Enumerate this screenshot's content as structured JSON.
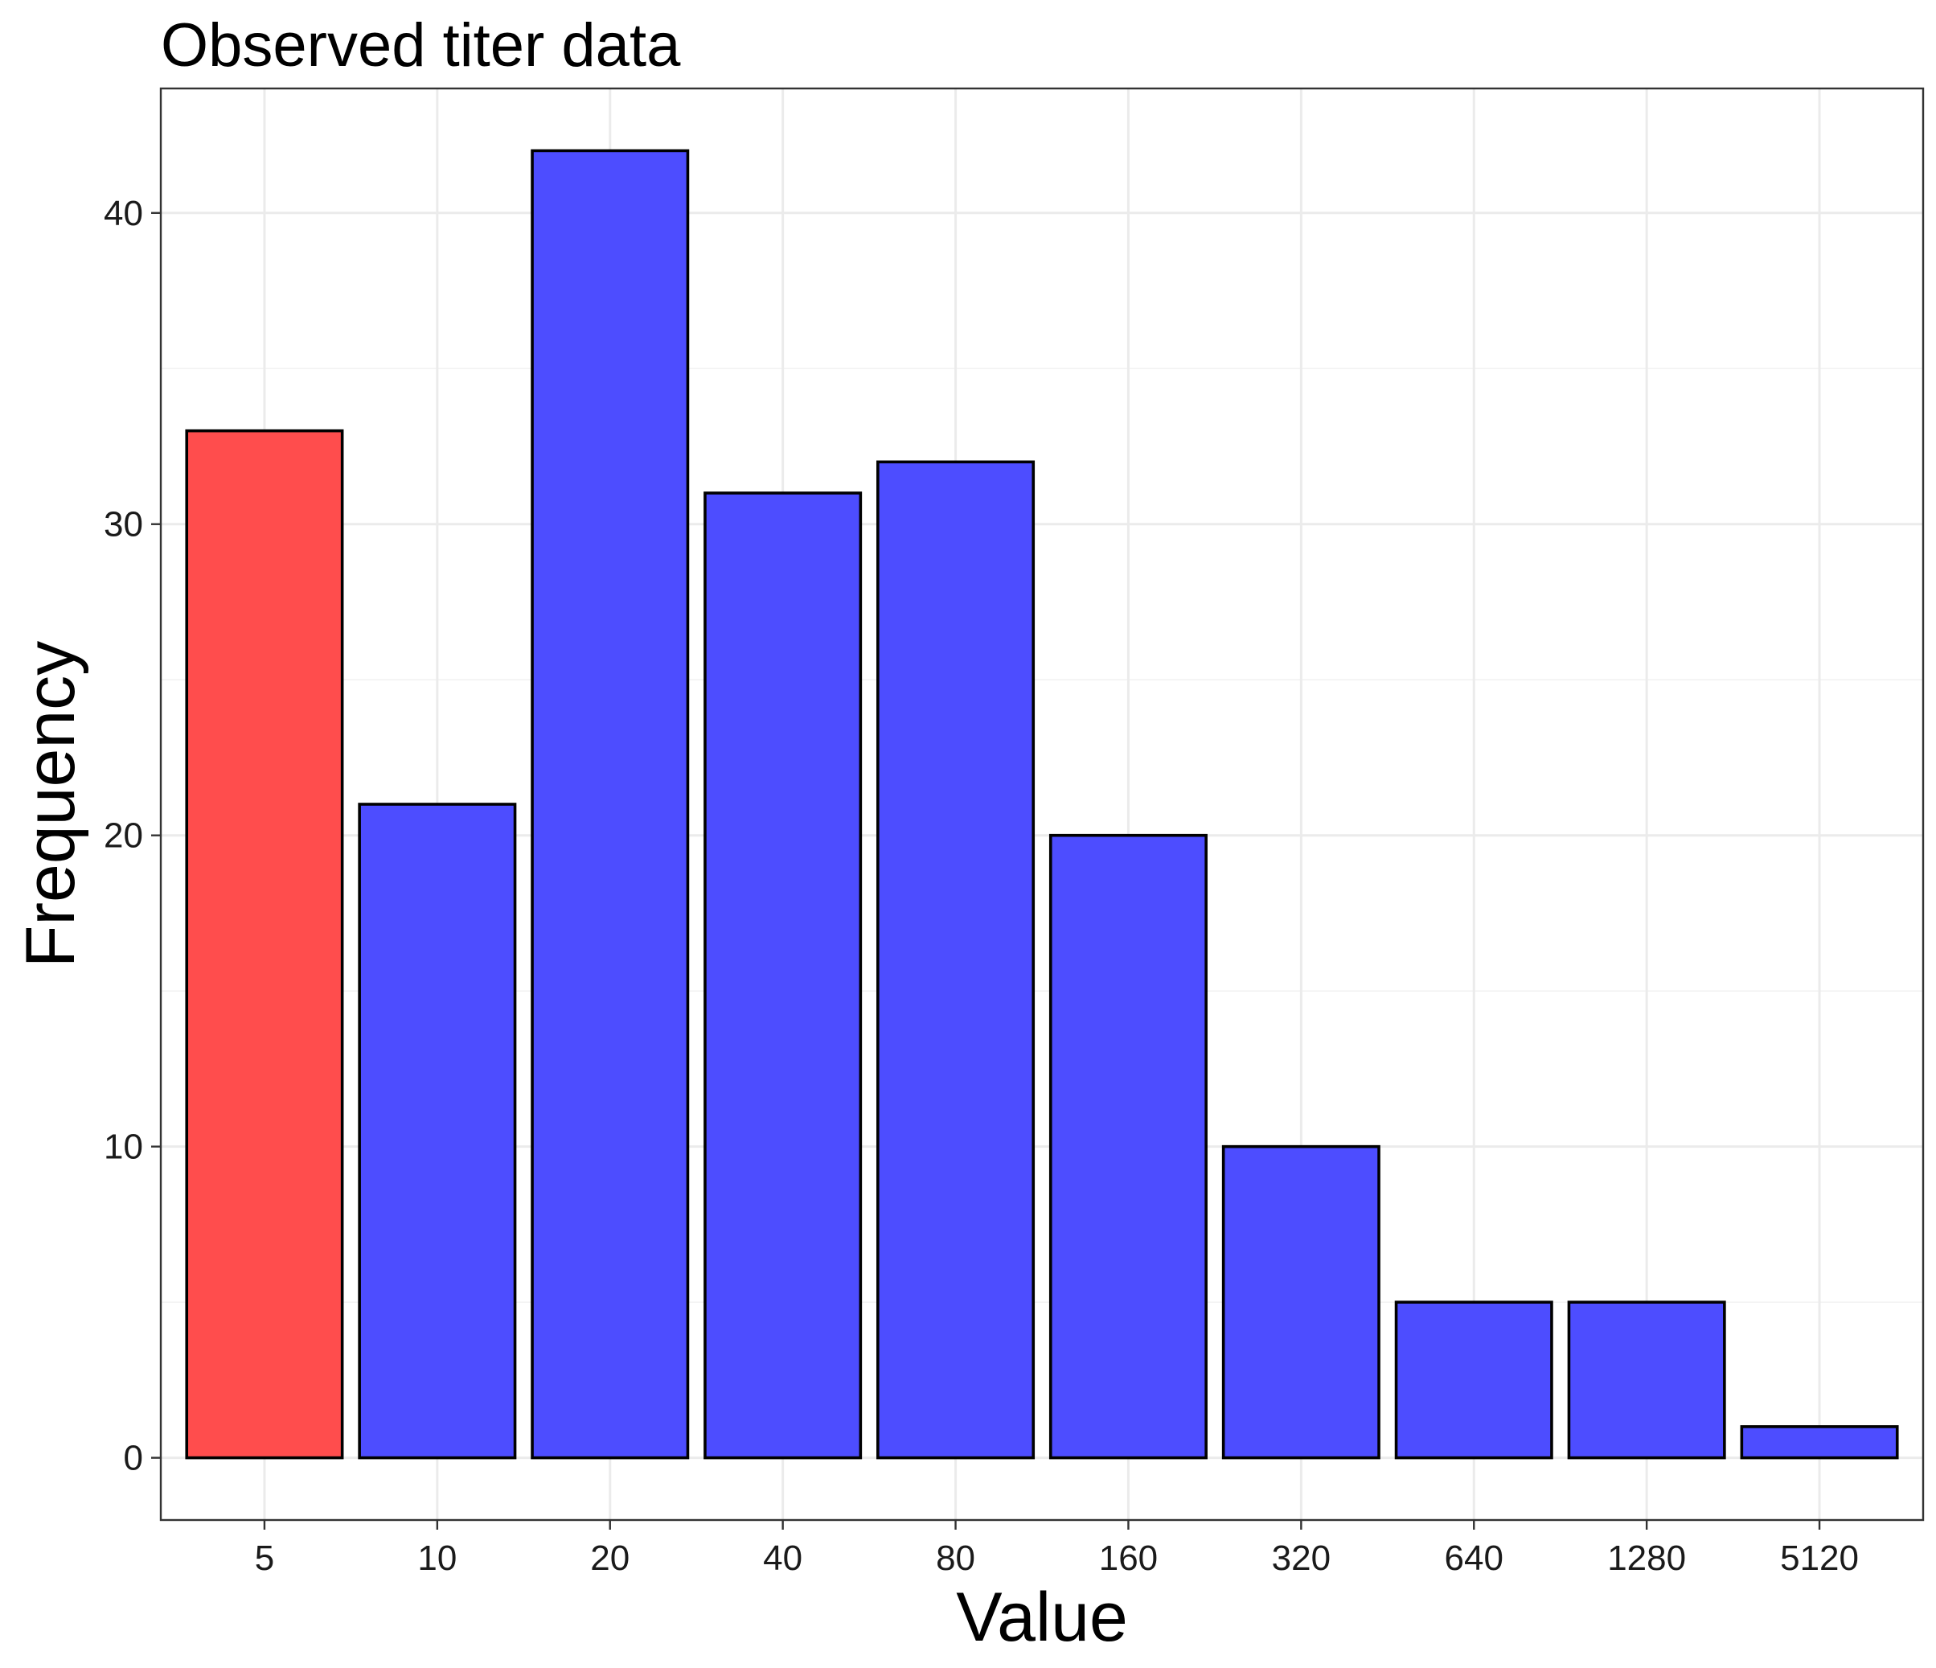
{
  "chart_data": {
    "type": "bar",
    "title": "Observed titer data",
    "xlabel": "Value",
    "ylabel": "Frequency",
    "categories": [
      "5",
      "10",
      "20",
      "40",
      "80",
      "160",
      "320",
      "640",
      "1280",
      "5120"
    ],
    "values": [
      33,
      21,
      42,
      31,
      32,
      20,
      10,
      5,
      5,
      1
    ],
    "bar_colors": [
      "#ff4d4d",
      "#4d4dff",
      "#4d4dff",
      "#4d4dff",
      "#4d4dff",
      "#4d4dff",
      "#4d4dff",
      "#4d4dff",
      "#4d4dff",
      "#4d4dff"
    ],
    "ylim": [
      -2,
      44
    ],
    "yticks": [
      0,
      10,
      20,
      30,
      40
    ],
    "ytick_labels": [
      "0",
      "10",
      "20",
      "30",
      "40"
    ],
    "grid": true,
    "legend": "none"
  }
}
